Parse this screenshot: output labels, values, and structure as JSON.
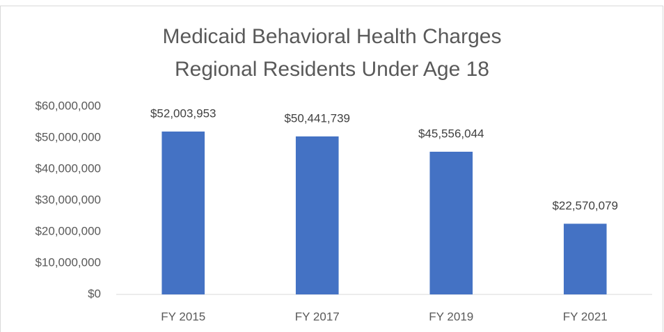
{
  "chart_data": {
    "type": "bar",
    "title": "Medicaid Behavioral Health Charges",
    "subtitle": "Regional Residents Under Age 18",
    "categories": [
      "FY 2015",
      "FY 2017",
      "FY 2019",
      "FY 2021"
    ],
    "values": [
      52003953,
      50441739,
      45556044,
      22570079
    ],
    "value_labels": [
      "$52,003,953",
      "$50,441,739",
      "$45,556,044",
      "$22,570,079"
    ],
    "color": "#4472c4",
    "ylim": [
      0,
      60000000
    ],
    "yticks": [
      {
        "value": 0,
        "label": "$0"
      },
      {
        "value": 10000000,
        "label": "$10,000,000"
      },
      {
        "value": 20000000,
        "label": "$20,000,000"
      },
      {
        "value": 30000000,
        "label": "$30,000,000"
      },
      {
        "value": 40000000,
        "label": "$40,000,000"
      },
      {
        "value": 50000000,
        "label": "$50,000,000"
      },
      {
        "value": 60000000,
        "label": "$60,000,000"
      }
    ],
    "grid": false
  }
}
